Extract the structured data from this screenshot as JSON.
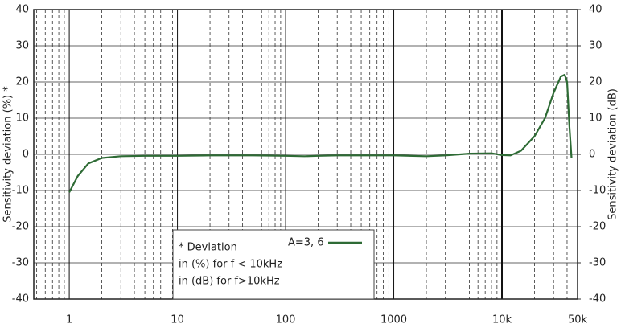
{
  "chart_data": {
    "type": "line",
    "y_label": "Sensitivity deviation (%) *",
    "y2_label": "Sensitivity deviation (dB)",
    "log_x": true,
    "xlim": [
      0.47,
      50000
    ],
    "xticks": [
      1,
      10,
      100,
      1000,
      {
        "value": 10000,
        "label": "10k"
      },
      {
        "value": 50000,
        "label": "50k"
      }
    ],
    "x_minor_grid": [
      0.5,
      0.6,
      0.7,
      0.8,
      0.9,
      2,
      3,
      4,
      5,
      6,
      7,
      8,
      9,
      20,
      30,
      40,
      50,
      60,
      70,
      80,
      90,
      200,
      300,
      400,
      500,
      600,
      700,
      800,
      900,
      2000,
      3000,
      4000,
      5000,
      6000,
      7000,
      8000,
      9000,
      20000,
      30000,
      40000
    ],
    "ylim": [
      -40,
      40
    ],
    "yticks": [
      -40,
      -30,
      -20,
      -10,
      0,
      10,
      20,
      30,
      40
    ],
    "y2lim": [
      -40,
      40
    ],
    "y2ticks": [
      -40,
      -30,
      -20,
      -10,
      0,
      10,
      20,
      30,
      40
    ],
    "grid": true,
    "annotation": [
      "* Deviation",
      "in (%) for f < 10kHz",
      "in (dB) for f>10kHz"
    ],
    "series": [
      {
        "name": "A=3, 6",
        "color": "#2e6b35",
        "x": [
          1,
          1.2,
          1.5,
          2,
          3,
          5,
          10,
          20,
          50,
          100,
          150,
          200,
          300,
          500,
          1000,
          2000,
          3000,
          5000,
          8000,
          10000,
          12000,
          15000,
          20000,
          25000,
          30000,
          35000,
          38000,
          40000,
          42000,
          44000
        ],
        "values": [
          -10.5,
          -6,
          -2.5,
          -1,
          -0.5,
          -0.4,
          -0.4,
          -0.3,
          -0.3,
          -0.4,
          -0.5,
          -0.4,
          -0.3,
          -0.3,
          -0.3,
          -0.5,
          -0.3,
          0.2,
          0.3,
          -0.2,
          -0.3,
          1,
          5,
          10,
          17,
          21.5,
          22,
          20,
          8,
          -1
        ]
      }
    ]
  }
}
